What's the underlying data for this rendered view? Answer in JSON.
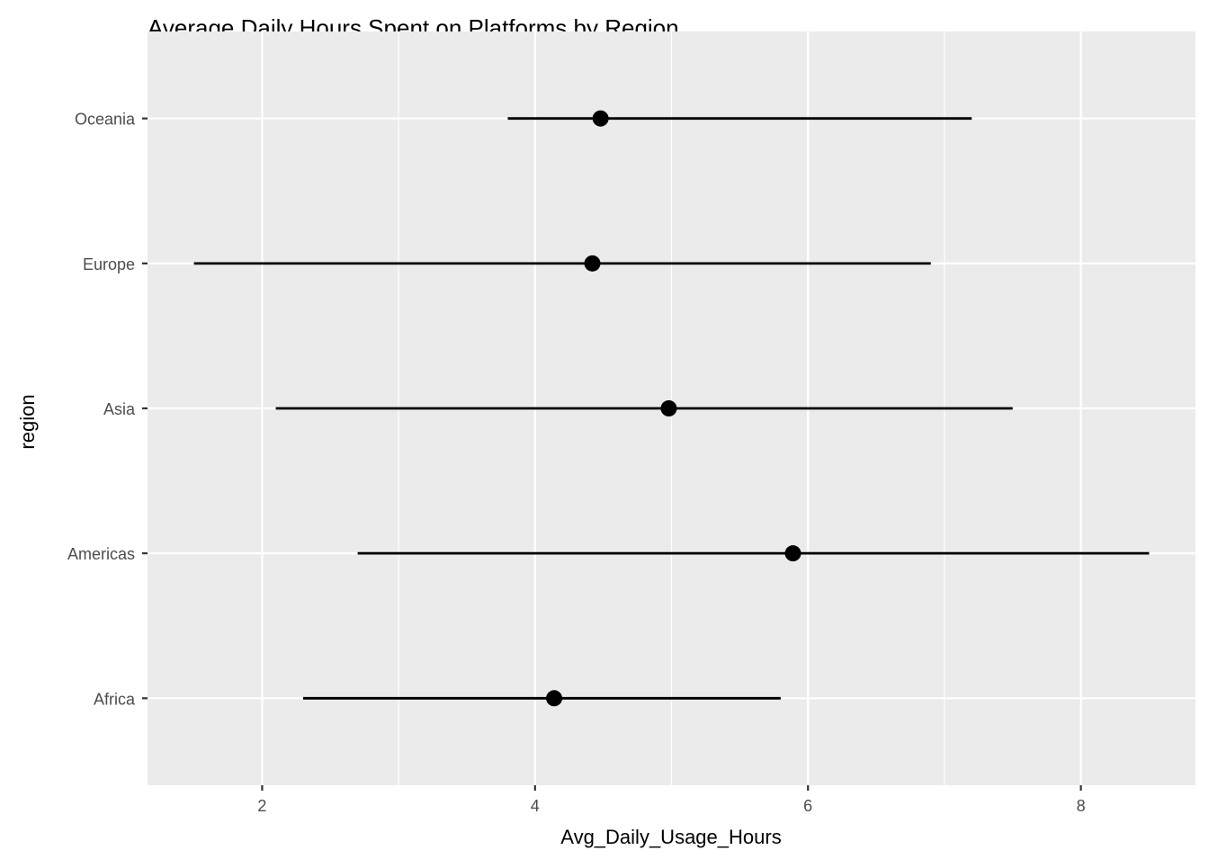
{
  "chart_data": {
    "type": "pointrange",
    "title": "Average Daily Hours Spent on Platforms by Region",
    "xlabel": "Avg_Daily_Usage_Hours",
    "ylabel": "region",
    "xlim": [
      1.16,
      8.84
    ],
    "x_ticks": [
      2,
      4,
      6,
      8
    ],
    "x_tick_labels": [
      "2",
      "4",
      "6",
      "8"
    ],
    "categories": [
      "Africa",
      "Americas",
      "Asia",
      "Europe",
      "Oceania"
    ],
    "points": [
      {
        "region": "Africa",
        "mean": 4.14,
        "min": 2.3,
        "max": 5.8
      },
      {
        "region": "Americas",
        "mean": 5.89,
        "min": 2.7,
        "max": 8.5
      },
      {
        "region": "Asia",
        "mean": 4.98,
        "min": 2.1,
        "max": 7.5
      },
      {
        "region": "Europe",
        "mean": 4.42,
        "min": 1.5,
        "max": 6.9
      },
      {
        "region": "Oceania",
        "mean": 4.48,
        "min": 3.8,
        "max": 7.2
      }
    ],
    "grid": true,
    "legend": "none",
    "colors": {
      "panel_background": "#EBEBEB",
      "grid": "#FFFFFF",
      "marks": "#000000",
      "tick_text": "#4D4D4D",
      "tick_marks": "#333333"
    }
  }
}
